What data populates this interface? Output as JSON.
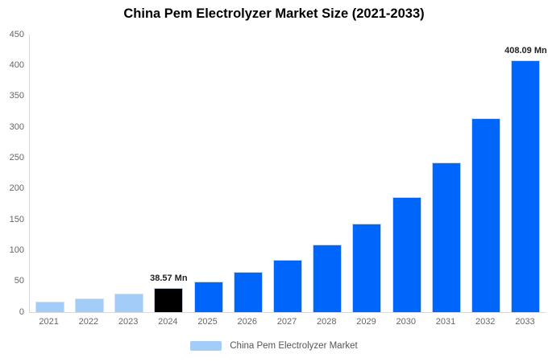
{
  "title": "China Pem Electrolyzer Market Size (2021-2033)",
  "legend": {
    "label": "China Pem Electrolyzer Market",
    "swatch_color": "#a4ccf8"
  },
  "colors": {
    "light_blue": "#a4ccf8",
    "bright_blue": "#0066fb",
    "highlight_black": "#000000",
    "axis_line": "#d8d8d8",
    "tick_text": "#666666",
    "annotation_text": "#222222"
  },
  "chart_data": {
    "type": "bar",
    "title": "China Pem Electrolyzer Market Size (2021-2033)",
    "xlabel": "",
    "ylabel": "",
    "categories": [
      "2021",
      "2022",
      "2023",
      "2024",
      "2025",
      "2026",
      "2027",
      "2028",
      "2029",
      "2030",
      "2031",
      "2032",
      "2033"
    ],
    "series": [
      {
        "name": "China Pem Electrolyzer Market",
        "values": [
          17.56,
          22.82,
          29.67,
          38.57,
          50.14,
          65.18,
          84.74,
          110.16,
          143.21,
          186.17,
          242.02,
          314.63,
          408.09
        ],
        "bar_colors": [
          "#a4ccf8",
          "#a4ccf8",
          "#a4ccf8",
          "#000000",
          "#0066fb",
          "#0066fb",
          "#0066fb",
          "#0066fb",
          "#0066fb",
          "#0066fb",
          "#0066fb",
          "#0066fb",
          "#0066fb"
        ]
      }
    ],
    "units": "Mn",
    "ylim": [
      0,
      450
    ],
    "yticks": [
      0,
      50,
      100,
      150,
      200,
      250,
      300,
      350,
      400,
      450
    ],
    "grid": false,
    "legend_position": "bottom",
    "annotations": [
      {
        "category": "2024",
        "text": "38.57 Mn"
      },
      {
        "category": "2033",
        "text": "408.09 Mn"
      }
    ]
  }
}
